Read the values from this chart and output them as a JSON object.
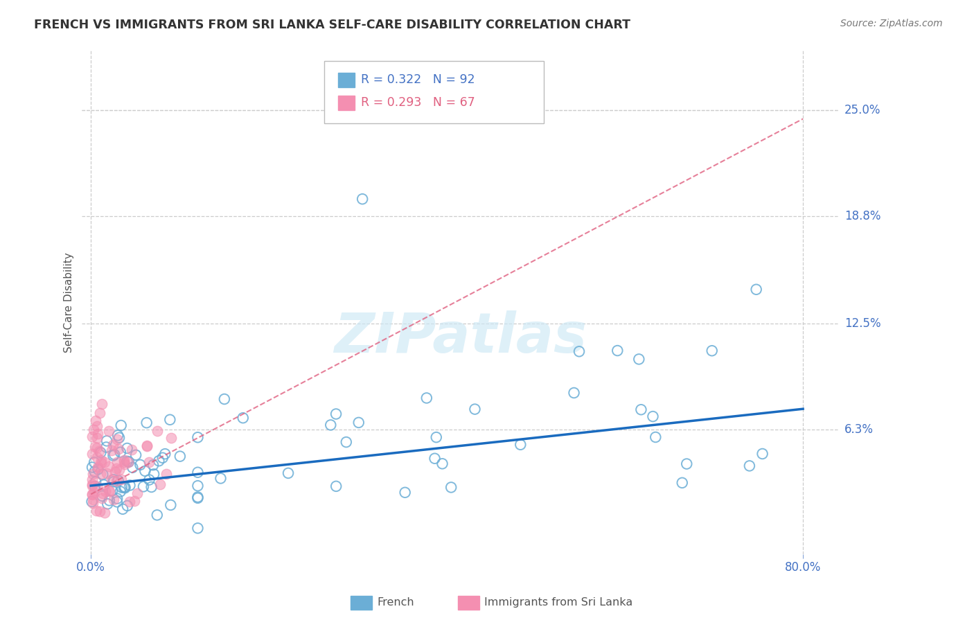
{
  "title": "FRENCH VS IMMIGRANTS FROM SRI LANKA SELF-CARE DISABILITY CORRELATION CHART",
  "source": "Source: ZipAtlas.com",
  "ylabel": "Self-Care Disability",
  "ytick_labels": [
    "25.0%",
    "18.8%",
    "12.5%",
    "6.3%"
  ],
  "ytick_values": [
    0.25,
    0.188,
    0.125,
    0.063
  ],
  "xlim": [
    -0.01,
    0.84
  ],
  "ylim": [
    -0.01,
    0.285
  ],
  "legend_r1": "R = 0.322",
  "legend_n1": "N = 92",
  "legend_r2": "R = 0.293",
  "legend_n2": "N = 67",
  "legend_label1": "French",
  "legend_label2": "Immigrants from Sri Lanka",
  "french_color": "#6baed6",
  "sri_lanka_color": "#f48fb1",
  "french_line_color": "#1a6bbf",
  "sri_lanka_line_color": "#e06080",
  "watermark": "ZIPatlas",
  "background_color": "#ffffff",
  "french_line_x0": 0.0,
  "french_line_x1": 0.8,
  "french_line_y0": 0.03,
  "french_line_y1": 0.075,
  "sri_line_x0": 0.0,
  "sri_line_x1": 0.8,
  "sri_line_y0": 0.025,
  "sri_line_y1": 0.245
}
